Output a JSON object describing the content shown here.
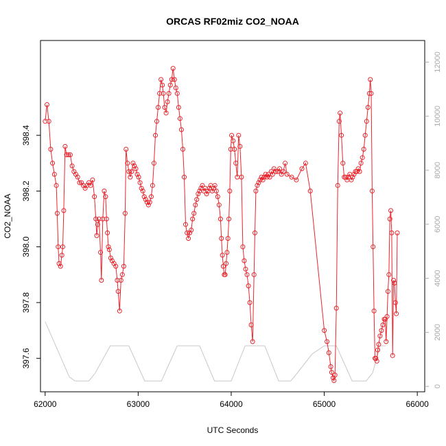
{
  "chart_data": {
    "type": "line",
    "title": "ORCAS RF02miz CO2_NOAA",
    "xlabel": "UTC Seconds",
    "ylabel": "CO2_NOAA",
    "xlim": [
      61950,
      66080
    ],
    "ylim": [
      397.48,
      398.74
    ],
    "y2lim": [
      -200,
      12800
    ],
    "x_ticks": [
      62000,
      63000,
      64000,
      65000,
      66000
    ],
    "y_ticks": [
      397.6,
      397.8,
      398.0,
      398.2,
      398.4
    ],
    "y2_ticks": [
      0,
      2000,
      4000,
      6000,
      8000,
      10000,
      12000
    ],
    "grid": false,
    "colors": {
      "co2": "#e8242c",
      "altitude": "#c8c8c8",
      "axis": "#000000",
      "axis2": "#a8a8a8"
    },
    "series": [
      {
        "type": "line+markers",
        "axis": "left",
        "points": [
          [
            62000,
            398.45
          ],
          [
            62020,
            398.51
          ],
          [
            62040,
            398.45
          ],
          [
            62060,
            398.35
          ],
          [
            62080,
            398.3
          ],
          [
            62100,
            398.26
          ],
          [
            62120,
            398.22
          ],
          [
            62130,
            398.12
          ],
          [
            62140,
            398.0
          ],
          [
            62150,
            397.94
          ],
          [
            62165,
            397.93
          ],
          [
            62180,
            397.97
          ],
          [
            62190,
            398.0
          ],
          [
            62200,
            398.13
          ],
          [
            62215,
            398.36
          ],
          [
            62230,
            398.33
          ],
          [
            62250,
            398.33
          ],
          [
            62270,
            398.33
          ],
          [
            62290,
            398.29
          ],
          [
            62310,
            398.27
          ],
          [
            62330,
            398.26
          ],
          [
            62350,
            398.25
          ],
          [
            62370,
            398.23
          ],
          [
            62390,
            398.23
          ],
          [
            62410,
            398.22
          ],
          [
            62430,
            398.21
          ],
          [
            62450,
            398.22
          ],
          [
            62470,
            398.23
          ],
          [
            62490,
            398.22
          ],
          [
            62510,
            398.24
          ],
          [
            62530,
            398.18
          ],
          [
            62545,
            398.1
          ],
          [
            62555,
            398.04
          ],
          [
            62565,
            398.08
          ],
          [
            62580,
            398.1
          ],
          [
            62595,
            397.98
          ],
          [
            62605,
            397.88
          ],
          [
            62620,
            398.1
          ],
          [
            62635,
            398.2
          ],
          [
            62650,
            398.18
          ],
          [
            62660,
            398.1
          ],
          [
            62670,
            398.05
          ],
          [
            62680,
            398.0
          ],
          [
            62690,
            397.99
          ],
          [
            62705,
            397.96
          ],
          [
            62720,
            397.95
          ],
          [
            62740,
            397.94
          ],
          [
            62760,
            397.93
          ],
          [
            62775,
            397.88
          ],
          [
            62785,
            397.84
          ],
          [
            62800,
            397.77
          ],
          [
            62815,
            397.88
          ],
          [
            62830,
            397.9
          ],
          [
            62845,
            397.93
          ],
          [
            62860,
            398.12
          ],
          [
            62870,
            398.35
          ],
          [
            62885,
            398.3
          ],
          [
            62900,
            398.27
          ],
          [
            62915,
            398.25
          ],
          [
            62930,
            398.27
          ],
          [
            62945,
            398.3
          ],
          [
            62960,
            398.29
          ],
          [
            62975,
            398.28
          ],
          [
            62990,
            398.26
          ],
          [
            63005,
            398.25
          ],
          [
            63020,
            398.23
          ],
          [
            63035,
            398.21
          ],
          [
            63050,
            398.2
          ],
          [
            63065,
            398.18
          ],
          [
            63080,
            398.17
          ],
          [
            63095,
            398.16
          ],
          [
            63110,
            398.15
          ],
          [
            63125,
            398.16
          ],
          [
            63140,
            398.18
          ],
          [
            63155,
            398.22
          ],
          [
            63170,
            398.3
          ],
          [
            63185,
            398.4
          ],
          [
            63200,
            398.45
          ],
          [
            63215,
            398.5
          ],
          [
            63230,
            398.55
          ],
          [
            63245,
            398.6
          ],
          [
            63260,
            398.58
          ],
          [
            63270,
            398.55
          ],
          [
            63285,
            398.5
          ],
          [
            63300,
            398.48
          ],
          [
            63315,
            398.52
          ],
          [
            63330,
            398.55
          ],
          [
            63345,
            398.58
          ],
          [
            63360,
            398.6
          ],
          [
            63375,
            398.64
          ],
          [
            63390,
            398.6
          ],
          [
            63405,
            398.57
          ],
          [
            63420,
            398.55
          ],
          [
            63435,
            398.5
          ],
          [
            63450,
            398.46
          ],
          [
            63465,
            398.42
          ],
          [
            63480,
            398.35
          ],
          [
            63495,
            398.25
          ],
          [
            63510,
            398.08
          ],
          [
            63525,
            398.05
          ],
          [
            63540,
            398.03
          ],
          [
            63555,
            398.05
          ],
          [
            63570,
            398.06
          ],
          [
            63585,
            398.1
          ],
          [
            63600,
            398.12
          ],
          [
            63615,
            398.15
          ],
          [
            63630,
            398.17
          ],
          [
            63645,
            398.19
          ],
          [
            63660,
            398.2
          ],
          [
            63675,
            398.21
          ],
          [
            63690,
            398.22
          ],
          [
            63705,
            398.2
          ],
          [
            63720,
            398.21
          ],
          [
            63735,
            398.19
          ],
          [
            63750,
            398.2
          ],
          [
            63765,
            398.21
          ],
          [
            63780,
            398.22
          ],
          [
            63795,
            398.2
          ],
          [
            63810,
            398.21
          ],
          [
            63825,
            398.22
          ],
          [
            63840,
            398.2
          ],
          [
            63855,
            398.18
          ],
          [
            63870,
            398.15
          ],
          [
            63885,
            398.1
          ],
          [
            63895,
            398.03
          ],
          [
            63905,
            397.97
          ],
          [
            63915,
            397.93
          ],
          [
            63925,
            397.9
          ],
          [
            63935,
            397.9
          ],
          [
            63945,
            397.94
          ],
          [
            63955,
            397.98
          ],
          [
            63965,
            398.03
          ],
          [
            63975,
            398.1
          ],
          [
            63985,
            398.2
          ],
          [
            63995,
            398.35
          ],
          [
            64005,
            398.4
          ],
          [
            64020,
            398.38
          ],
          [
            64035,
            398.35
          ],
          [
            64050,
            398.3
          ],
          [
            64065,
            398.25
          ],
          [
            64080,
            398.4
          ],
          [
            64095,
            398.36
          ],
          [
            64110,
            398.25
          ],
          [
            64125,
            398.0
          ],
          [
            64140,
            397.95
          ],
          [
            64155,
            397.92
          ],
          [
            64170,
            397.9
          ],
          [
            64185,
            397.86
          ],
          [
            64200,
            397.8
          ],
          [
            64215,
            397.72
          ],
          [
            64230,
            397.66
          ],
          [
            64245,
            397.9
          ],
          [
            64255,
            398.05
          ],
          [
            64265,
            398.2
          ],
          [
            64280,
            398.22
          ],
          [
            64295,
            398.23
          ],
          [
            64310,
            398.24
          ],
          [
            64325,
            398.25
          ],
          [
            64340,
            398.24
          ],
          [
            64355,
            398.25
          ],
          [
            64370,
            398.26
          ],
          [
            64385,
            398.25
          ],
          [
            64400,
            398.26
          ],
          [
            64415,
            398.25
          ],
          [
            64430,
            398.27
          ],
          [
            64445,
            398.26
          ],
          [
            64460,
            398.28
          ],
          [
            64480,
            398.27
          ],
          [
            64500,
            398.27
          ],
          [
            64520,
            398.28
          ],
          [
            64540,
            398.26
          ],
          [
            64560,
            398.27
          ],
          [
            64580,
            398.3
          ],
          [
            64600,
            398.26
          ],
          [
            64650,
            398.25
          ],
          [
            64700,
            398.24
          ],
          [
            64760,
            398.28
          ],
          [
            64800,
            398.3
          ],
          [
            64850,
            398.2
          ],
          [
            65000,
            397.7
          ],
          [
            65030,
            397.66
          ],
          [
            65050,
            397.62
          ],
          [
            65070,
            397.57
          ],
          [
            65080,
            397.55
          ],
          [
            65095,
            397.53
          ],
          [
            65105,
            397.52
          ],
          [
            65115,
            397.54
          ],
          [
            65130,
            397.78
          ],
          [
            65145,
            398.22
          ],
          [
            65160,
            398.45
          ],
          [
            65170,
            398.48
          ],
          [
            65185,
            398.4
          ],
          [
            65200,
            398.3
          ],
          [
            65215,
            398.25
          ],
          [
            65230,
            398.25
          ],
          [
            65245,
            398.24
          ],
          [
            65260,
            398.25
          ],
          [
            65275,
            398.26
          ],
          [
            65290,
            398.24
          ],
          [
            65305,
            398.25
          ],
          [
            65320,
            398.26
          ],
          [
            65335,
            398.27
          ],
          [
            65350,
            398.27
          ],
          [
            65365,
            398.28
          ],
          [
            65380,
            398.27
          ],
          [
            65395,
            398.3
          ],
          [
            65410,
            398.32
          ],
          [
            65425,
            398.35
          ],
          [
            65440,
            398.4
          ],
          [
            65455,
            398.45
          ],
          [
            65470,
            398.5
          ],
          [
            65485,
            398.55
          ],
          [
            65495,
            398.6
          ],
          [
            65505,
            398.55
          ],
          [
            65515,
            398.2
          ],
          [
            65525,
            398.0
          ],
          [
            65535,
            397.77
          ],
          [
            65545,
            397.6
          ],
          [
            65555,
            397.6
          ],
          [
            65565,
            397.59
          ],
          [
            65575,
            397.63
          ],
          [
            65585,
            397.65
          ],
          [
            65600,
            397.68
          ],
          [
            65615,
            397.7
          ],
          [
            65630,
            397.72
          ],
          [
            65645,
            397.74
          ],
          [
            65655,
            397.74
          ],
          [
            65665,
            397.66
          ],
          [
            65675,
            397.75
          ],
          [
            65685,
            397.84
          ],
          [
            65695,
            397.9
          ],
          [
            65705,
            398.1
          ],
          [
            65715,
            398.13
          ],
          [
            65725,
            398.05
          ],
          [
            65735,
            397.61
          ],
          [
            65745,
            397.88
          ],
          [
            65755,
            397.87
          ],
          [
            65765,
            397.8
          ],
          [
            65775,
            397.76
          ],
          [
            65785,
            398.05
          ]
        ]
      },
      {
        "type": "line",
        "axis": "right",
        "points": [
          [
            62000,
            2400
          ],
          [
            62260,
            350
          ],
          [
            62320,
            200
          ],
          [
            62470,
            200
          ],
          [
            62540,
            500
          ],
          [
            62700,
            1500
          ],
          [
            62900,
            1500
          ],
          [
            63070,
            200
          ],
          [
            63250,
            200
          ],
          [
            63420,
            1500
          ],
          [
            63660,
            1500
          ],
          [
            63820,
            200
          ],
          [
            64000,
            200
          ],
          [
            64150,
            1500
          ],
          [
            64360,
            1500
          ],
          [
            64510,
            200
          ],
          [
            64640,
            200
          ],
          [
            64700,
            450
          ],
          [
            64870,
            1200
          ],
          [
            65000,
            1500
          ],
          [
            65130,
            1500
          ],
          [
            65300,
            200
          ],
          [
            65450,
            200
          ],
          [
            65520,
            500
          ],
          [
            65600,
            1500
          ],
          [
            65660,
            1500
          ]
        ]
      }
    ]
  }
}
